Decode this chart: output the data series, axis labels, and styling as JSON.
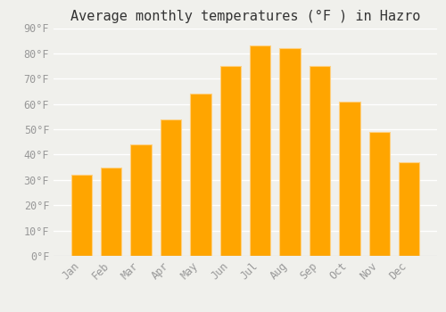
{
  "title": "Average monthly temperatures (°F ) in Hazro",
  "months": [
    "Jan",
    "Feb",
    "Mar",
    "Apr",
    "May",
    "Jun",
    "Jul",
    "Aug",
    "Sep",
    "Oct",
    "Nov",
    "Dec"
  ],
  "values": [
    32,
    35,
    44,
    54,
    64,
    75,
    83,
    82,
    75,
    61,
    49,
    37
  ],
  "bar_color_face": "#FFA500",
  "bar_color_edge": "#FFD080",
  "ylim": [
    0,
    90
  ],
  "yticks": [
    0,
    10,
    20,
    30,
    40,
    50,
    60,
    70,
    80,
    90
  ],
  "ytick_labels": [
    "0°F",
    "10°F",
    "20°F",
    "30°F",
    "40°F",
    "50°F",
    "60°F",
    "70°F",
    "80°F",
    "90°F"
  ],
  "background_color": "#F0F0EC",
  "grid_color": "#FFFFFF",
  "title_fontsize": 11,
  "tick_fontsize": 8.5,
  "tick_color": "#999999",
  "font_family": "monospace",
  "bar_width": 0.7
}
